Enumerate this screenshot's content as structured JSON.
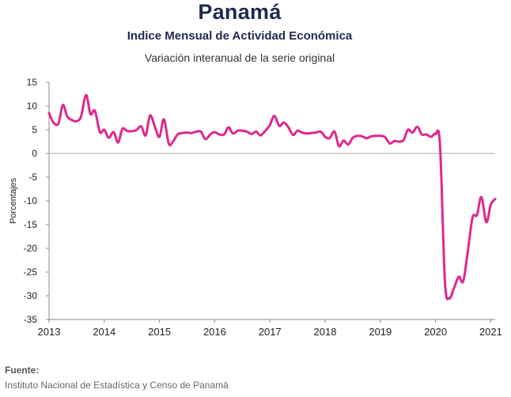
{
  "chart_data": {
    "type": "line",
    "title": "Panamá",
    "subtitle": "Indice Mensual de  Actividad Económica",
    "subtitle2": "Variación interanual de la serie original",
    "xlabel": "",
    "ylabel": "Porcentajes",
    "ylim": [
      -35,
      15
    ],
    "yticks": [
      "15",
      "10",
      "5",
      "0",
      "-5",
      "-10",
      "-15",
      "-20",
      "-25",
      "-30",
      "-35"
    ],
    "xticks": [
      "2013",
      "2014",
      "2015",
      "2016",
      "2017",
      "2018",
      "2019",
      "2020",
      "2021"
    ],
    "grid": false,
    "line_color": "#e0278f",
    "series": [
      {
        "x": [
          2013.0,
          2013.08,
          2013.17,
          2013.25,
          2013.33,
          2013.42,
          2013.5,
          2013.58,
          2013.67,
          2013.75,
          2013.83,
          2013.92,
          2014.0,
          2014.08,
          2014.17,
          2014.25,
          2014.33,
          2014.42,
          2014.5,
          2014.58,
          2014.67,
          2014.75,
          2014.83,
          2014.92,
          2015.0,
          2015.08,
          2015.17,
          2015.25,
          2015.33,
          2015.42,
          2015.5,
          2015.58,
          2015.67,
          2015.75,
          2015.83,
          2015.92,
          2016.0,
          2016.08,
          2016.17,
          2016.25,
          2016.33,
          2016.42,
          2016.5,
          2016.58,
          2016.67,
          2016.75,
          2016.83,
          2016.92,
          2017.0,
          2017.08,
          2017.17,
          2017.25,
          2017.33,
          2017.42,
          2017.5,
          2017.58,
          2017.67,
          2017.75,
          2017.83,
          2017.92,
          2018.0,
          2018.08,
          2018.17,
          2018.25,
          2018.33,
          2018.42,
          2018.5,
          2018.58,
          2018.67,
          2018.75,
          2018.83,
          2018.92,
          2019.0,
          2019.08,
          2019.17,
          2019.25,
          2019.33,
          2019.42,
          2019.5,
          2019.58,
          2019.67,
          2019.75,
          2019.83,
          2019.92,
          2020.0,
          2020.08,
          2020.17,
          2020.25,
          2020.33,
          2020.42,
          2020.5,
          2020.58,
          2020.67,
          2020.75,
          2020.83,
          2020.92,
          2021.0,
          2021.08
        ],
        "y": [
          8.5,
          6.5,
          6.3,
          10.2,
          7.8,
          7.0,
          6.8,
          7.8,
          12.3,
          8.3,
          9.0,
          4.5,
          5.0,
          3.3,
          4.5,
          2.3,
          5.2,
          4.7,
          4.7,
          4.9,
          5.7,
          3.8,
          8.0,
          5.5,
          3.5,
          7.2,
          2.0,
          2.6,
          4.0,
          4.3,
          4.4,
          4.3,
          4.6,
          4.6,
          3.0,
          4.0,
          4.5,
          4.0,
          4.0,
          5.5,
          4.2,
          4.8,
          4.8,
          4.6,
          4.1,
          4.6,
          3.8,
          4.8,
          6.0,
          7.9,
          5.8,
          6.5,
          5.6,
          3.9,
          4.8,
          4.4,
          4.2,
          4.3,
          4.4,
          4.6,
          3.5,
          3.2,
          4.6,
          1.5,
          2.7,
          1.9,
          3.3,
          3.7,
          3.6,
          3.2,
          3.6,
          3.7,
          3.7,
          3.5,
          2.1,
          2.6,
          2.5,
          2.8,
          5.0,
          4.4,
          5.6,
          4.0,
          4.0,
          3.5,
          4.1,
          1.9,
          -27.0,
          -30.5,
          -28.5,
          -26.0,
          -27.0,
          -21.0,
          -13.5,
          -13.0,
          -9.2,
          -14.5,
          -10.8,
          -9.6
        ]
      }
    ]
  },
  "source": {
    "label": "Fuente:",
    "text": "Instituto Nacional de Estadística y Censo de Panamá"
  }
}
